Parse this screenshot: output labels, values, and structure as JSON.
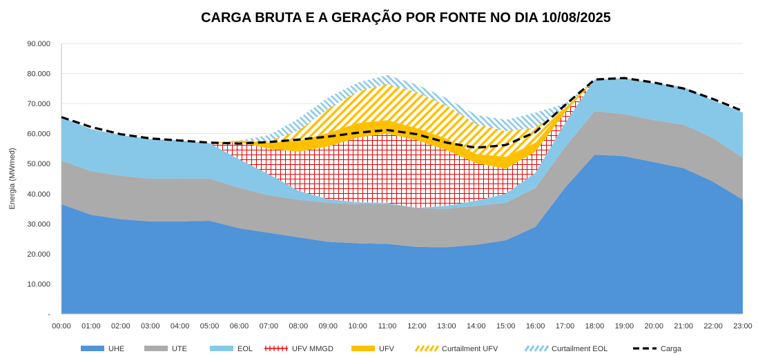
{
  "chart_data": {
    "type": "area",
    "title": "CARGA BRUTA E A GERAÇÃO POR FONTE NO DIA 10/08/2025",
    "xlabel": "",
    "ylabel": "Energia (MWmed)",
    "ylim": [
      0,
      90000
    ],
    "y_ticks": [
      0,
      10000,
      20000,
      30000,
      40000,
      50000,
      60000,
      70000,
      80000,
      90000
    ],
    "y_tick_labels": [
      "-",
      "10.000",
      "20.000",
      "30.000",
      "40.000",
      "50.000",
      "60.000",
      "70.000",
      "80.000",
      "90.000"
    ],
    "categories": [
      "00:00",
      "01:00",
      "02:00",
      "03:00",
      "04:00",
      "05:00",
      "06:00",
      "07:00",
      "08:00",
      "09:00",
      "10:00",
      "11:00",
      "12:00",
      "13:00",
      "14:00",
      "15:00",
      "16:00",
      "17:00",
      "18:00",
      "19:00",
      "20:00",
      "21:00",
      "22:00",
      "23:00"
    ],
    "series": [
      {
        "name": "UHE",
        "color": "#4f93d8",
        "pattern": "solid",
        "values": [
          36500,
          33000,
          31500,
          30800,
          30800,
          31000,
          28500,
          27000,
          25500,
          24000,
          23500,
          23300,
          22300,
          22200,
          23000,
          24500,
          29000,
          42000,
          53000,
          52500,
          50500,
          48500,
          44000,
          38000
        ]
      },
      {
        "name": "UTE",
        "color": "#ababab",
        "pattern": "solid",
        "values": [
          14500,
          14500,
          14500,
          14200,
          14300,
          14000,
          13500,
          12500,
          12500,
          13000,
          13000,
          13200,
          13000,
          12800,
          13000,
          12500,
          13000,
          13500,
          14500,
          14000,
          14000,
          14500,
          14500,
          14000
        ]
      },
      {
        "name": "EOL",
        "color": "#87c8e8",
        "pattern": "solid",
        "values": [
          14500,
          14000,
          13500,
          13200,
          12700,
          11800,
          9500,
          7000,
          3000,
          1200,
          700,
          500,
          0,
          1000,
          1700,
          3000,
          5000,
          8000,
          10500,
          12000,
          12300,
          12500,
          12500,
          15000
        ]
      },
      {
        "name": "UFV MMGD",
        "color": "#e00000",
        "pattern": "grid",
        "values": [
          0,
          0,
          0,
          0,
          0,
          0,
          5700,
          8500,
          13000,
          17500,
          21500,
          23000,
          22500,
          18500,
          12500,
          8300,
          7000,
          3500,
          0,
          0,
          0,
          0,
          0,
          0
        ]
      },
      {
        "name": "UFV",
        "color": "#ffc000",
        "pattern": "solid",
        "values": [
          0,
          0,
          0,
          0,
          0,
          0,
          500,
          2000,
          3500,
          4500,
          4800,
          4500,
          4000,
          3800,
          3000,
          4000,
          3000,
          1500,
          0,
          0,
          0,
          0,
          0,
          0
        ]
      },
      {
        "name": "Curtailment UFV",
        "color": "#ffc000",
        "pattern": "hatch",
        "values": [
          0,
          0,
          0,
          0,
          0,
          0,
          0,
          500,
          3500,
          8000,
          10500,
          12000,
          12000,
          11000,
          10000,
          8500,
          5000,
          0,
          0,
          0,
          0,
          0,
          0,
          0
        ]
      },
      {
        "name": "Curtailment EOL",
        "color": "#87c8e8",
        "pattern": "hatch",
        "values": [
          0,
          0,
          0,
          0,
          0,
          0,
          0,
          2000,
          4000,
          3800,
          3000,
          3000,
          2500,
          2500,
          3000,
          3800,
          5000,
          1500,
          0,
          0,
          0,
          0,
          0,
          0
        ]
      }
    ],
    "line_series": {
      "name": "Carga",
      "color": "#000000",
      "style": "dashed",
      "values": [
        65500,
        62200,
        59800,
        58400,
        57700,
        57000,
        56700,
        57200,
        58000,
        59000,
        60300,
        61200,
        59800,
        57000,
        55300,
        56200,
        60500,
        69500,
        78000,
        78500,
        77000,
        75000,
        71500,
        67500
      ]
    },
    "legend": {
      "position": "bottom",
      "entries": [
        "UHE",
        "UTE",
        "EOL",
        "UFV MMGD",
        "UFV",
        "Curtailment UFV",
        "Curtailment EOL",
        "Carga"
      ]
    }
  }
}
